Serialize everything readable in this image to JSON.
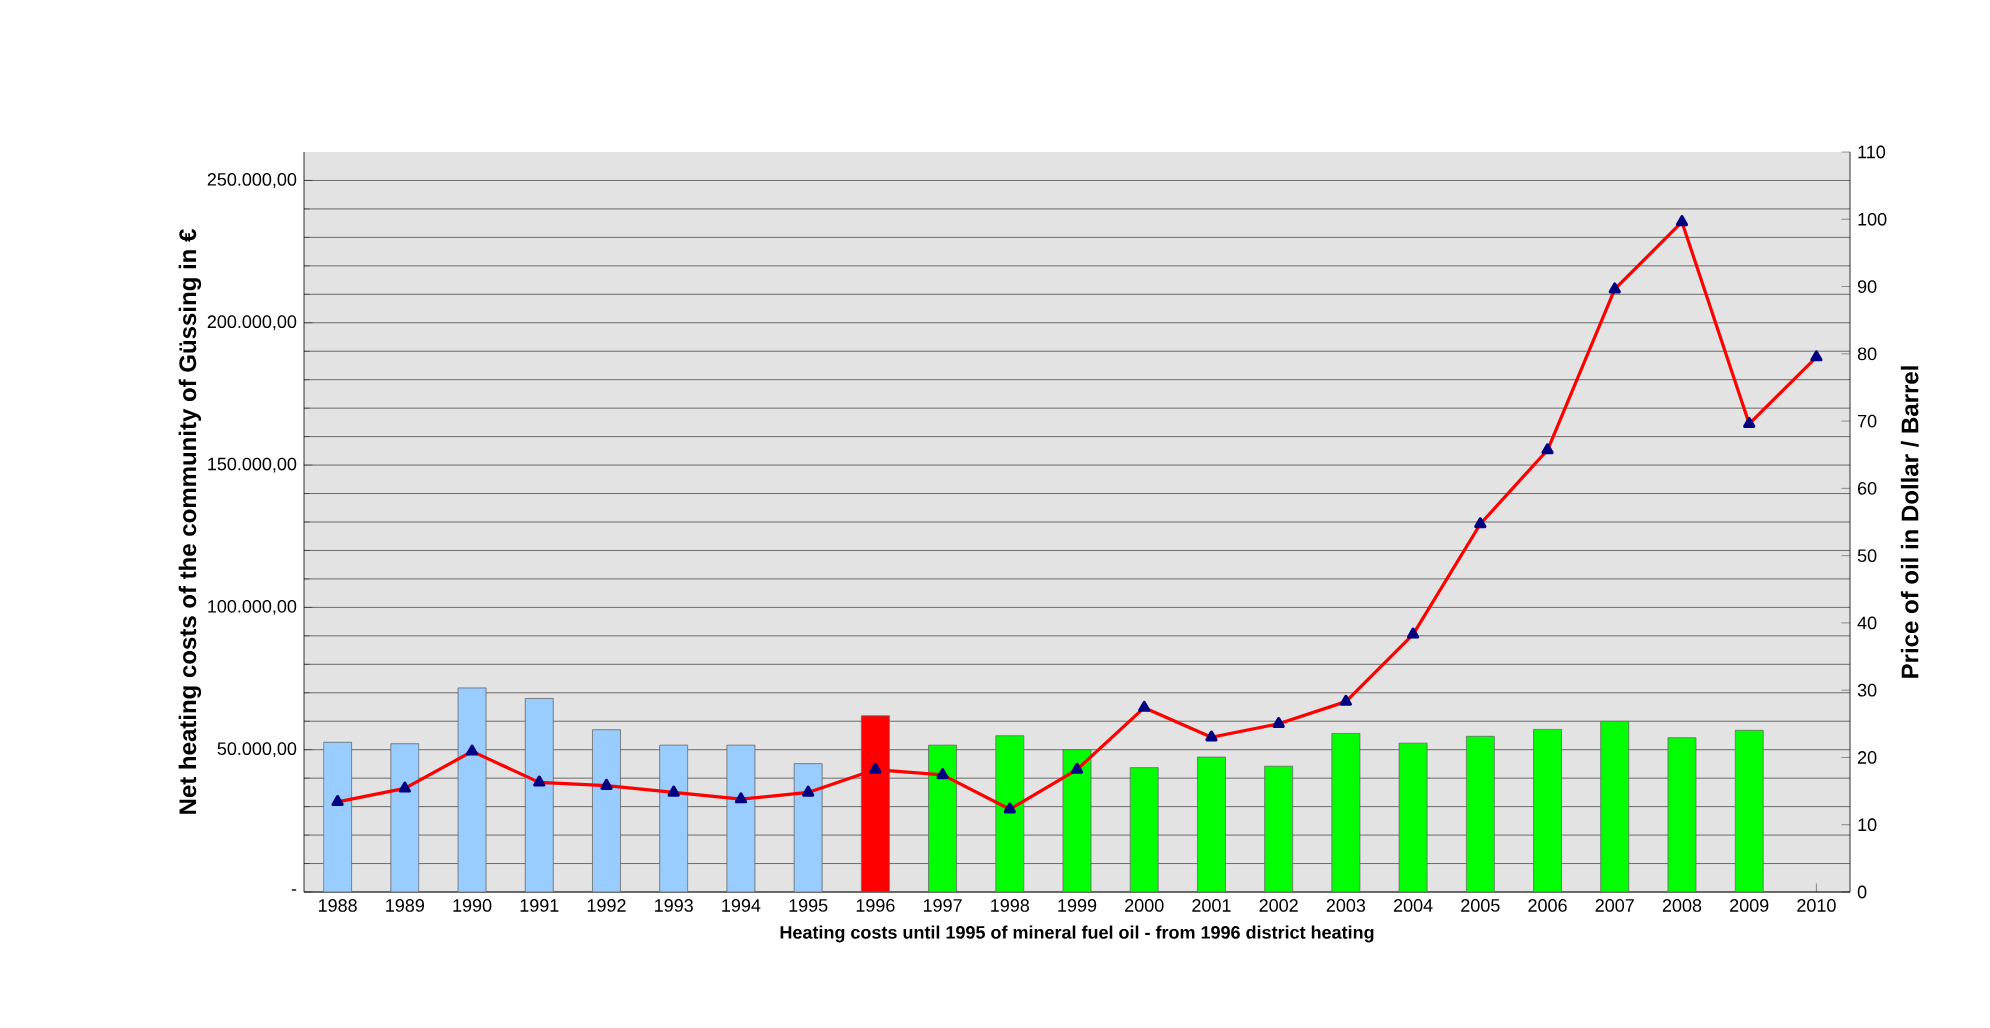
{
  "chart_data": {
    "type": "bar",
    "xlabel": "Heating costs until 1995 of mineral fuel oil - from 1996 district heating",
    "ylabel": "Net heating costs of the community of Güssing in €",
    "y2label": "Price of oil in Dollar / Barrel",
    "categories": [
      "1988",
      "1989",
      "1990",
      "1991",
      "1992",
      "1993",
      "1994",
      "1995",
      "1996",
      "1997",
      "1998",
      "1999",
      "2000",
      "2001",
      "2002",
      "2003",
      "2004",
      "2005",
      "2006",
      "2007",
      "2008",
      "2009",
      "2010"
    ],
    "series": [
      {
        "colors": [
          "#99ccff",
          "#99ccff",
          "#99ccff",
          "#99ccff",
          "#99ccff",
          "#99ccff",
          "#99ccff",
          "#99ccff",
          "#ff0000",
          "#00ff00",
          "#00ff00",
          "#00ff00",
          "#00ff00",
          "#00ff00",
          "#00ff00",
          "#00ff00",
          "#00ff00",
          "#00ff00",
          "#00ff00",
          "#00ff00",
          "#00ff00",
          "#00ff00",
          "#00ff00"
        ],
        "values": [
          52600,
          52100,
          71700,
          68000,
          57000,
          51600,
          51600,
          45100,
          61900,
          51600,
          54900,
          50000,
          43700,
          47400,
          44200,
          55800,
          52300,
          54700,
          57200,
          60000,
          54200,
          56800,
          null
        ]
      },
      {
        "type": "line",
        "axis": "y2",
        "color": "#ff0000",
        "marker": "triangle",
        "values": [
          13.4,
          15.4,
          20.9,
          16.3,
          15.8,
          14.8,
          13.8,
          14.8,
          18.2,
          17.4,
          12.3,
          18.2,
          27.4,
          23.0,
          25.0,
          28.3,
          38.3,
          54.7,
          65.7,
          89.6,
          99.6,
          69.6,
          79.5
        ]
      }
    ],
    "ylim": [
      0,
      260000
    ],
    "yticks": [
      {
        "value": 0,
        "label": "-"
      },
      {
        "value": 50000,
        "label": "50.000,00"
      },
      {
        "value": 100000,
        "label": "100.000,00"
      },
      {
        "value": 150000,
        "label": "150.000,00"
      },
      {
        "value": 200000,
        "label": "200.000,00"
      },
      {
        "value": 250000,
        "label": "250.000,00"
      }
    ],
    "y2lim": [
      0,
      110
    ],
    "y2ticks": [
      0,
      10,
      20,
      30,
      40,
      50,
      60,
      70,
      80,
      90,
      100,
      110
    ],
    "grid": "y"
  }
}
